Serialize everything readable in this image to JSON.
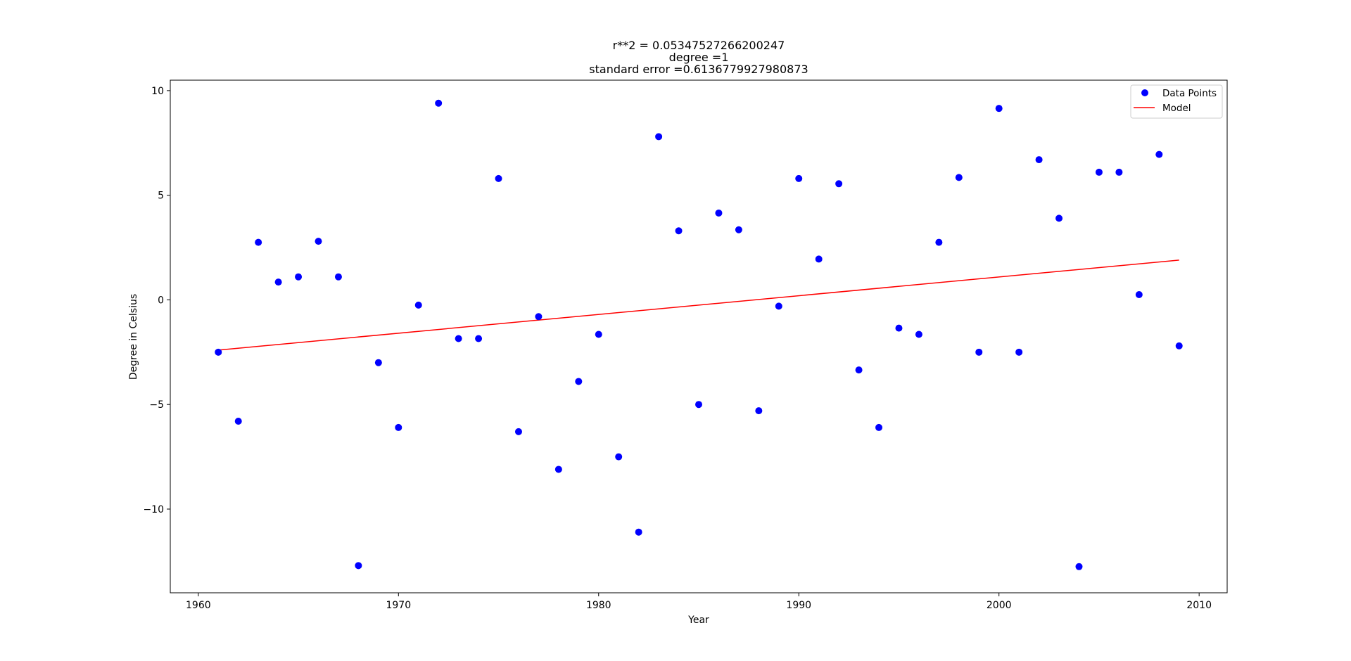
{
  "chart_data": {
    "type": "scatter",
    "title_lines": [
      "r**2 = 0.05347527266200247",
      "degree =1",
      "standard error =0.6136779927980873"
    ],
    "xlabel": "Year",
    "ylabel": "Degree in Celsius",
    "xlim": [
      1958.6,
      2011.4
    ],
    "ylim": [
      -14.0,
      10.5
    ],
    "x_ticks": [
      1960,
      1970,
      1980,
      1990,
      2000,
      2010
    ],
    "x_tick_labels": [
      "1960",
      "1970",
      "1980",
      "1990",
      "2000",
      "2010"
    ],
    "y_ticks": [
      10,
      5,
      0,
      -5,
      -10
    ],
    "y_tick_labels": [
      "10",
      "5",
      "0",
      "−5",
      "−10"
    ],
    "grid": false,
    "legend_position": "top-right",
    "series": [
      {
        "name": "Data Points",
        "kind": "scatter",
        "color": "#0000ff",
        "x": [
          1961,
          1962,
          1963,
          1964,
          1965,
          1966,
          1967,
          1968,
          1969,
          1970,
          1971,
          1972,
          1973,
          1974,
          1975,
          1976,
          1977,
          1978,
          1979,
          1980,
          1981,
          1982,
          1983,
          1984,
          1985,
          1986,
          1987,
          1988,
          1989,
          1990,
          1991,
          1992,
          1993,
          1994,
          1995,
          1996,
          1997,
          1998,
          1999,
          2000,
          2001,
          2002,
          2003,
          2004,
          2005,
          2006,
          2007,
          2008,
          2009
        ],
        "y": [
          -2.5,
          -5.8,
          2.75,
          0.85,
          1.1,
          2.8,
          1.1,
          -12.7,
          -3.0,
          -6.1,
          -0.25,
          9.4,
          -1.85,
          -1.85,
          5.8,
          -6.3,
          -0.8,
          -8.1,
          -3.9,
          -1.65,
          -7.5,
          -11.1,
          7.8,
          3.3,
          -5.0,
          4.15,
          3.35,
          -5.3,
          -0.3,
          5.8,
          1.95,
          5.55,
          -3.35,
          -6.1,
          -1.35,
          -1.65,
          2.75,
          5.85,
          -2.5,
          9.15,
          -2.5,
          6.7,
          3.9,
          -12.75,
          6.1,
          6.1,
          0.25,
          6.95,
          -2.2
        ]
      },
      {
        "name": "Model",
        "kind": "line",
        "color": "#ff0000",
        "x": [
          1961,
          2009
        ],
        "y": [
          -2.4,
          1.9
        ]
      }
    ]
  }
}
